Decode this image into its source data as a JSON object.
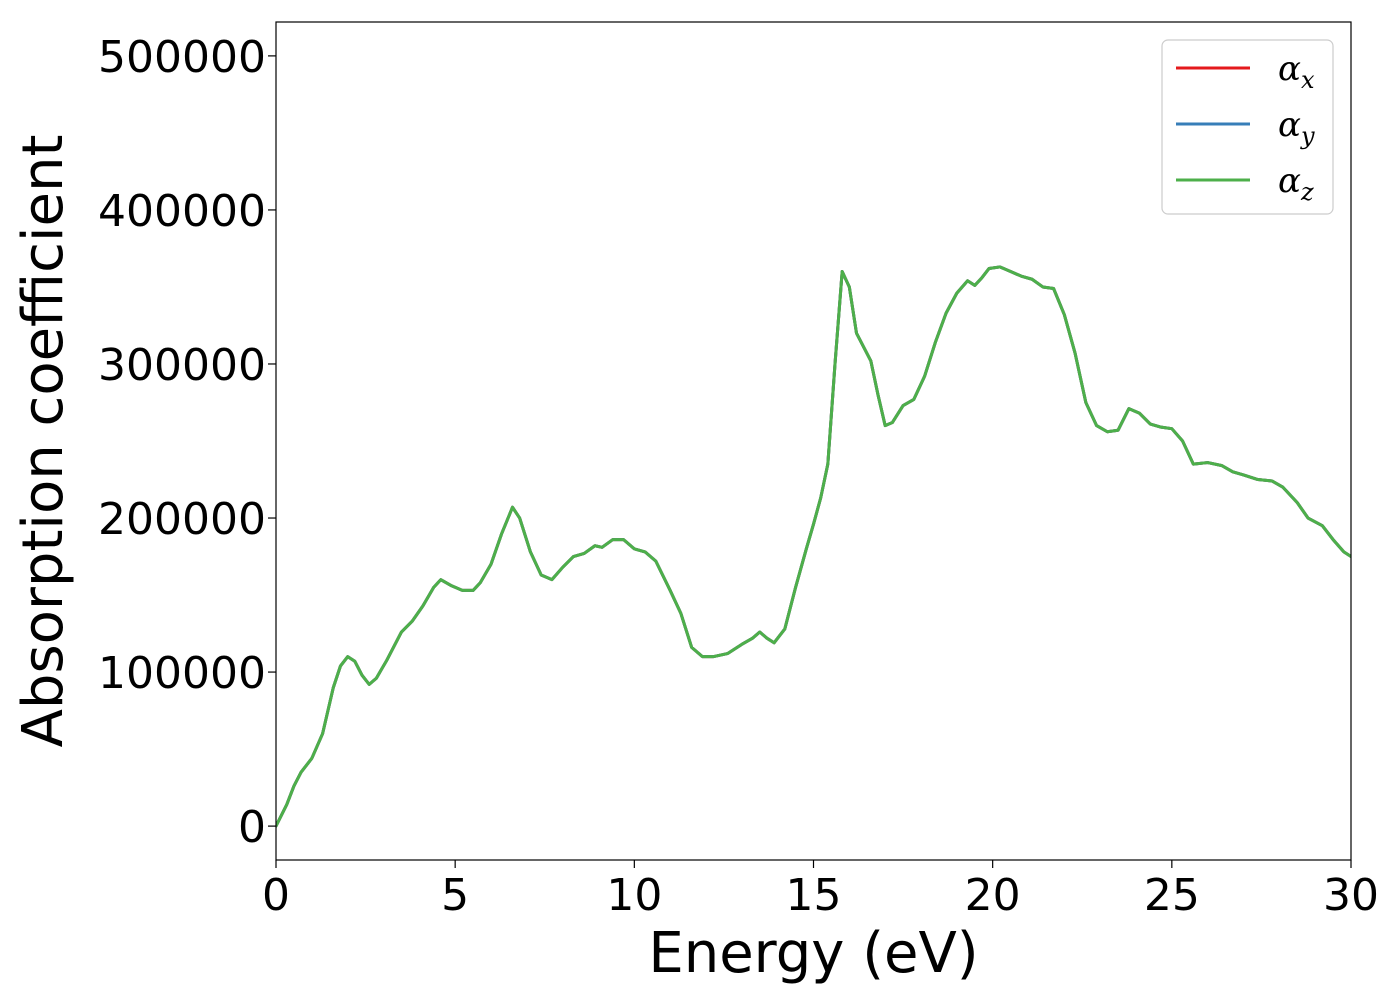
{
  "chart_data": {
    "type": "line",
    "xlabel": "Energy (eV)",
    "ylabel": "Absorption coefficient",
    "xlim": [
      0,
      30
    ],
    "ylim": [
      -22000,
      522000
    ],
    "x_ticks": [
      0,
      5,
      10,
      15,
      20,
      25,
      30
    ],
    "y_ticks": [
      0,
      100000,
      200000,
      300000,
      400000,
      500000
    ],
    "grid": false,
    "legend_position": "top-right",
    "legend": [
      {
        "symbol": "α",
        "sub": "x",
        "color": "#e41a1c"
      },
      {
        "symbol": "α",
        "sub": "y",
        "color": "#377eb8"
      },
      {
        "symbol": "α",
        "sub": "z",
        "color": "#4daf4a"
      }
    ],
    "x": [
      0,
      0.3,
      0.5,
      0.7,
      1.0,
      1.3,
      1.6,
      1.8,
      2.0,
      2.2,
      2.4,
      2.6,
      2.8,
      3.1,
      3.5,
      3.8,
      4.1,
      4.4,
      4.6,
      4.9,
      5.2,
      5.5,
      5.7,
      6.0,
      6.3,
      6.6,
      6.8,
      7.1,
      7.4,
      7.7,
      8.0,
      8.3,
      8.6,
      8.9,
      9.1,
      9.4,
      9.7,
      10.0,
      10.3,
      10.6,
      11.0,
      11.3,
      11.6,
      11.9,
      12.2,
      12.6,
      13.0,
      13.3,
      13.5,
      13.7,
      13.9,
      14.2,
      14.5,
      14.8,
      15.0,
      15.2,
      15.4,
      15.6,
      15.8,
      16.0,
      16.2,
      16.4,
      16.6,
      16.8,
      17.0,
      17.2,
      17.5,
      17.8,
      18.1,
      18.4,
      18.7,
      19.0,
      19.3,
      19.5,
      19.7,
      19.9,
      20.2,
      20.5,
      20.8,
      21.1,
      21.4,
      21.7,
      22.0,
      22.3,
      22.6,
      22.9,
      23.2,
      23.5,
      23.8,
      24.1,
      24.4,
      24.7,
      25.0,
      25.3,
      25.6,
      26.0,
      26.4,
      26.7,
      27.0,
      27.4,
      27.8,
      28.1,
      28.5,
      28.8,
      29.2,
      29.5,
      29.8,
      30.0
    ],
    "series": [
      {
        "name": "",
        "color": "#e41a1c",
        "values": [
          0,
          14000,
          26000,
          35000,
          44000,
          60000,
          90000,
          104000,
          110000,
          107000,
          98000,
          92000,
          96000,
          108000,
          126000,
          133000,
          143000,
          155000,
          160000,
          156000,
          153000,
          153000,
          158000,
          170000,
          190000,
          207000,
          200000,
          178000,
          163000,
          160000,
          168000,
          175000,
          177000,
          182000,
          181000,
          186000,
          186000,
          180000,
          178000,
          172000,
          153000,
          138000,
          116000,
          110000,
          110000,
          112000,
          118000,
          122000,
          126000,
          122000,
          119000,
          128000,
          155000,
          180000,
          196000,
          213000,
          235000,
          300000,
          360000,
          350000,
          320000,
          311000,
          302000,
          280000,
          260000,
          262000,
          273000,
          277000,
          292000,
          314000,
          333000,
          346000,
          354000,
          351000,
          356000,
          362000,
          363000,
          360000,
          357000,
          355000,
          350000,
          349000,
          332000,
          307000,
          275000,
          260000,
          256000,
          257000,
          271000,
          268000,
          261000,
          259000,
          258000,
          250000,
          235000,
          236000,
          234000,
          230000,
          228000,
          225000,
          224000,
          220000,
          210000,
          200000,
          195000,
          186000,
          178000,
          175000
        ]
      },
      {
        "name": "",
        "color": "#377eb8",
        "values": [
          0,
          14000,
          26000,
          35000,
          44000,
          60000,
          90000,
          104000,
          110000,
          107000,
          98000,
          92000,
          96000,
          108000,
          126000,
          133000,
          143000,
          155000,
          160000,
          156000,
          153000,
          153000,
          158000,
          170000,
          190000,
          207000,
          200000,
          178000,
          163000,
          160000,
          168000,
          175000,
          177000,
          182000,
          181000,
          186000,
          186000,
          180000,
          178000,
          172000,
          153000,
          138000,
          116000,
          110000,
          110000,
          112000,
          118000,
          122000,
          126000,
          122000,
          119000,
          128000,
          155000,
          180000,
          196000,
          213000,
          235000,
          300000,
          360000,
          350000,
          320000,
          311000,
          302000,
          280000,
          260000,
          262000,
          273000,
          277000,
          292000,
          314000,
          333000,
          346000,
          354000,
          351000,
          356000,
          362000,
          363000,
          360000,
          357000,
          355000,
          350000,
          349000,
          332000,
          307000,
          275000,
          260000,
          256000,
          257000,
          271000,
          268000,
          261000,
          259000,
          258000,
          250000,
          235000,
          236000,
          234000,
          230000,
          228000,
          225000,
          224000,
          220000,
          210000,
          200000,
          195000,
          186000,
          178000,
          175000
        ]
      },
      {
        "name": "",
        "color": "#4daf4a",
        "values": [
          0,
          14000,
          26000,
          35000,
          44000,
          60000,
          90000,
          104000,
          110000,
          107000,
          98000,
          92000,
          96000,
          108000,
          126000,
          133000,
          143000,
          155000,
          160000,
          156000,
          153000,
          153000,
          158000,
          170000,
          190000,
          207000,
          200000,
          178000,
          163000,
          160000,
          168000,
          175000,
          177000,
          182000,
          181000,
          186000,
          186000,
          180000,
          178000,
          172000,
          153000,
          138000,
          116000,
          110000,
          110000,
          112000,
          118000,
          122000,
          126000,
          122000,
          119000,
          128000,
          155000,
          180000,
          196000,
          213000,
          235000,
          300000,
          360000,
          350000,
          320000,
          311000,
          302000,
          280000,
          260000,
          262000,
          273000,
          277000,
          292000,
          314000,
          333000,
          346000,
          354000,
          351000,
          356000,
          362000,
          363000,
          360000,
          357000,
          355000,
          350000,
          349000,
          332000,
          307000,
          275000,
          260000,
          256000,
          257000,
          271000,
          268000,
          261000,
          259000,
          258000,
          250000,
          235000,
          236000,
          234000,
          230000,
          228000,
          225000,
          224000,
          220000,
          210000,
          200000,
          195000,
          186000,
          178000,
          175000
        ]
      }
    ]
  }
}
